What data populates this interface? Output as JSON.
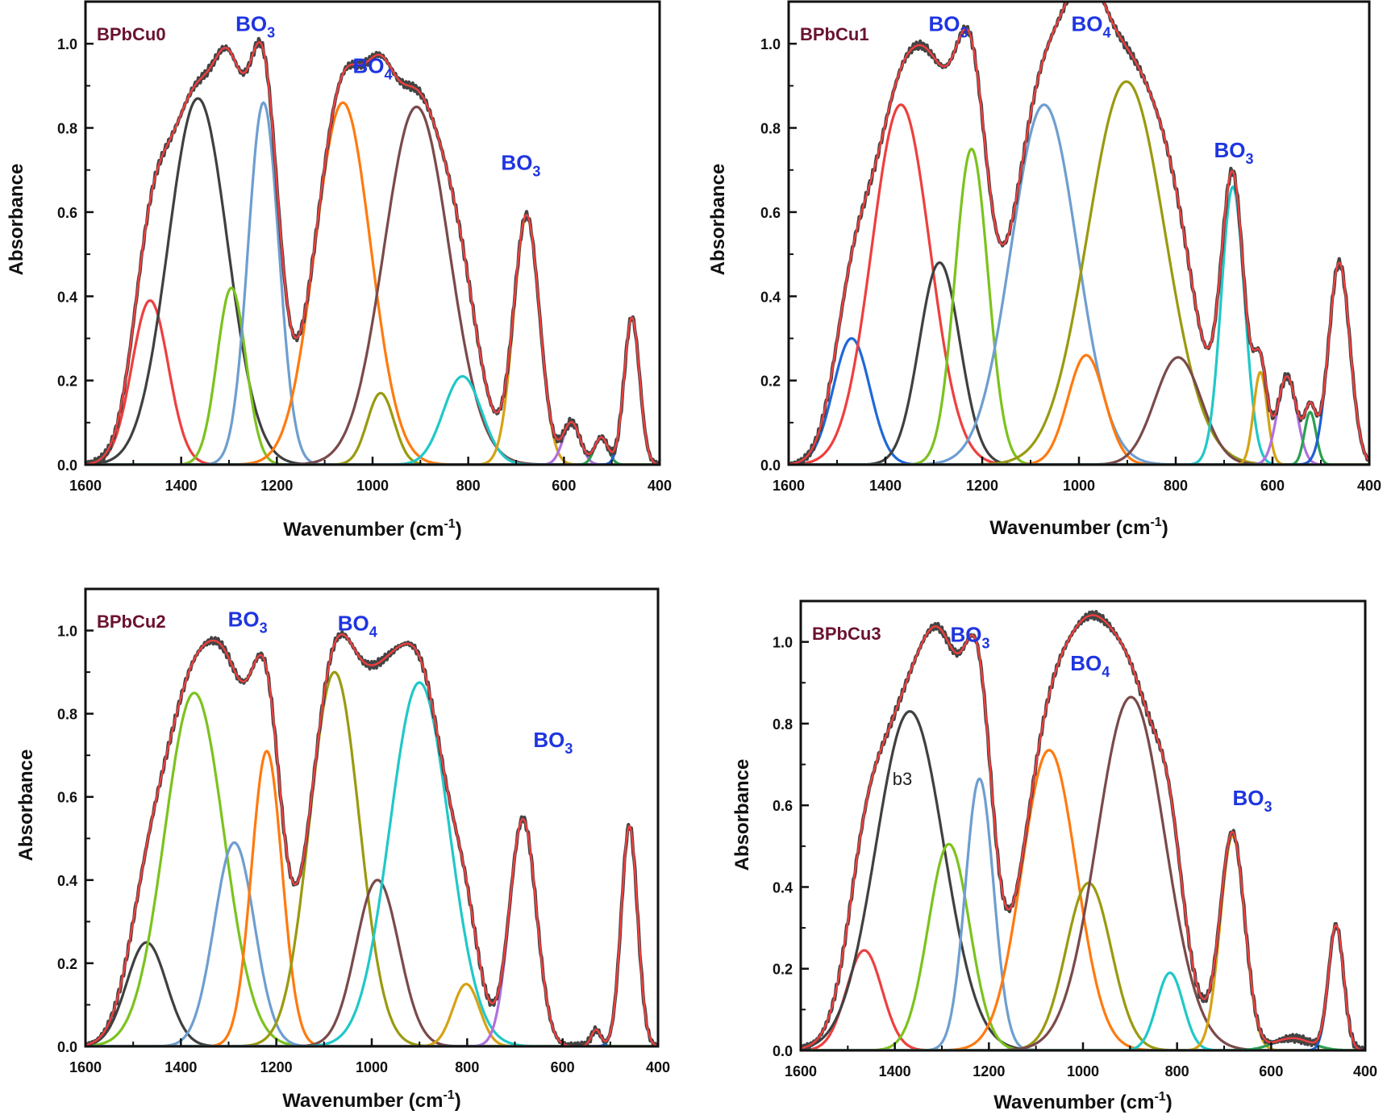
{
  "colors": {
    "sample_label": "#6b1230",
    "band_label": "#1f35e0",
    "experimental": "#444444",
    "fit": "#ee3f3f"
  },
  "axes": {
    "xlabel_prefix": "Wavenumber (cm",
    "xlabel_sup": "-1",
    "xlabel_suffix": ")",
    "ylabel": "Absorbance",
    "xlim": [
      1600,
      400
    ],
    "ylim": [
      0,
      1.1
    ],
    "xticks": [
      "1600",
      "1400",
      "1200",
      "1000",
      "800",
      "600",
      "400"
    ],
    "yticks": [
      "0.0",
      "0.2",
      "0.4",
      "0.6",
      "0.8",
      "1.0"
    ]
  },
  "chart_data": [
    {
      "type": "line",
      "sample": "BPbCu0",
      "band_labels": [
        {
          "main": "BO",
          "sub": "3",
          "x": 1245,
          "y": 1.03
        },
        {
          "main": "BO",
          "sub": "4",
          "x": 1000,
          "y": 0.93
        },
        {
          "main": "BO",
          "sub": "3",
          "x": 690,
          "y": 0.7
        }
      ],
      "notes": [],
      "components": [
        {
          "center": 1465,
          "amp": 0.39,
          "sigma": 38,
          "color": "#ee3f3f"
        },
        {
          "center": 1365,
          "amp": 0.87,
          "sigma": 62,
          "color": "#404040"
        },
        {
          "center": 1295,
          "amp": 0.42,
          "sigma": 30,
          "color": "#7cc21e"
        },
        {
          "center": 1228,
          "amp": 0.86,
          "sigma": 32,
          "color": "#6e9ed0"
        },
        {
          "center": 1062,
          "amp": 0.86,
          "sigma": 58,
          "color": "#ff7a0f"
        },
        {
          "center": 983,
          "amp": 0.17,
          "sigma": 28,
          "color": "#9a9a10"
        },
        {
          "center": 908,
          "amp": 0.85,
          "sigma": 68,
          "color": "#7a4a4a"
        },
        {
          "center": 812,
          "amp": 0.21,
          "sigma": 40,
          "color": "#20c8c8"
        },
        {
          "center": 678,
          "amp": 0.59,
          "sigma": 27,
          "color": "#d6a214"
        },
        {
          "center": 584,
          "amp": 0.1,
          "sigma": 18,
          "color": "#b070e0"
        },
        {
          "center": 522,
          "amp": 0.065,
          "sigma": 14,
          "color": "#2aa050"
        },
        {
          "center": 458,
          "amp": 0.35,
          "sigma": 16,
          "color": "#2060d0"
        }
      ]
    },
    {
      "type": "line",
      "sample": "BPbCu1",
      "band_labels": [
        {
          "main": "BO",
          "sub": "3",
          "x": 1270,
          "y": 1.03
        },
        {
          "main": "BO",
          "sub": "4",
          "x": 975,
          "y": 1.03
        },
        {
          "main": "BO",
          "sub": "3",
          "x": 680,
          "y": 0.73
        }
      ],
      "notes": [],
      "components": [
        {
          "center": 1470,
          "amp": 0.3,
          "sigma": 38,
          "color": "#2068d8"
        },
        {
          "center": 1368,
          "amp": 0.855,
          "sigma": 60,
          "color": "#ee3f3f"
        },
        {
          "center": 1288,
          "amp": 0.48,
          "sigma": 42,
          "color": "#404040"
        },
        {
          "center": 1222,
          "amp": 0.75,
          "sigma": 34,
          "color": "#7cc21e"
        },
        {
          "center": 1072,
          "amp": 0.855,
          "sigma": 68,
          "color": "#6e9ed0"
        },
        {
          "center": 985,
          "amp": 0.26,
          "sigma": 38,
          "color": "#ff7a0f"
        },
        {
          "center": 902,
          "amp": 0.91,
          "sigma": 80,
          "color": "#9a9a10"
        },
        {
          "center": 795,
          "amp": 0.255,
          "sigma": 48,
          "color": "#7a4a4a"
        },
        {
          "center": 682,
          "amp": 0.66,
          "sigma": 24,
          "color": "#20c8c8"
        },
        {
          "center": 625,
          "amp": 0.22,
          "sigma": 14,
          "color": "#d6a214"
        },
        {
          "center": 570,
          "amp": 0.21,
          "sigma": 20,
          "color": "#b070e0"
        },
        {
          "center": 522,
          "amp": 0.125,
          "sigma": 12,
          "color": "#2aa050"
        },
        {
          "center": 462,
          "amp": 0.48,
          "sigma": 22,
          "color": "#2060d0"
        }
      ]
    },
    {
      "type": "line",
      "sample": "BPbCu2",
      "band_labels": [
        {
          "main": "BO",
          "sub": "3",
          "x": 1260,
          "y": 1.01
        },
        {
          "main": "BO",
          "sub": "4",
          "x": 1030,
          "y": 1.0
        },
        {
          "main": "BO",
          "sub": "3",
          "x": 620,
          "y": 0.72
        }
      ],
      "notes": [],
      "components": [
        {
          "center": 1472,
          "amp": 0.25,
          "sigma": 42,
          "color": "#404040"
        },
        {
          "center": 1372,
          "amp": 0.85,
          "sigma": 62,
          "color": "#7cc21e"
        },
        {
          "center": 1288,
          "amp": 0.49,
          "sigma": 42,
          "color": "#6e9ed0"
        },
        {
          "center": 1220,
          "amp": 0.71,
          "sigma": 32,
          "color": "#ff7a0f"
        },
        {
          "center": 1078,
          "amp": 0.9,
          "sigma": 52,
          "color": "#9a9a10"
        },
        {
          "center": 988,
          "amp": 0.4,
          "sigma": 45,
          "color": "#7a4a4a"
        },
        {
          "center": 900,
          "amp": 0.875,
          "sigma": 62,
          "color": "#20c8c8"
        },
        {
          "center": 802,
          "amp": 0.15,
          "sigma": 28,
          "color": "#d6a214"
        },
        {
          "center": 683,
          "amp": 0.545,
          "sigma": 28,
          "color": "#b070e0"
        },
        {
          "center": 530,
          "amp": 0.04,
          "sigma": 10,
          "color": "#2aa050"
        },
        {
          "center": 460,
          "amp": 0.53,
          "sigma": 17,
          "color": "#2060d0"
        }
      ]
    },
    {
      "type": "line",
      "sample": "BPbCu3",
      "band_labels": [
        {
          "main": "BO",
          "sub": "3",
          "x": 1240,
          "y": 1.0
        },
        {
          "main": "BO",
          "sub": "4",
          "x": 985,
          "y": 0.93
        },
        {
          "main": "BO",
          "sub": "3",
          "x": 640,
          "y": 0.6
        }
      ],
      "notes": [
        {
          "text": "b3",
          "x": 1405,
          "y": 0.65
        }
      ],
      "components": [
        {
          "center": 1465,
          "amp": 0.245,
          "sigma": 38,
          "color": "#ee3f3f"
        },
        {
          "center": 1368,
          "amp": 0.83,
          "sigma": 72,
          "color": "#404040"
        },
        {
          "center": 1285,
          "amp": 0.505,
          "sigma": 44,
          "color": "#7cc21e"
        },
        {
          "center": 1220,
          "amp": 0.665,
          "sigma": 30,
          "color": "#6e9ed0"
        },
        {
          "center": 1072,
          "amp": 0.735,
          "sigma": 58,
          "color": "#ff7a0f"
        },
        {
          "center": 988,
          "amp": 0.41,
          "sigma": 48,
          "color": "#9a9a10"
        },
        {
          "center": 898,
          "amp": 0.865,
          "sigma": 72,
          "color": "#7a4a4a"
        },
        {
          "center": 815,
          "amp": 0.19,
          "sigma": 28,
          "color": "#20c8c8"
        },
        {
          "center": 682,
          "amp": 0.525,
          "sigma": 26,
          "color": "#d6a214"
        },
        {
          "center": 555,
          "amp": 0.03,
          "sigma": 40,
          "color": "#2aa050"
        },
        {
          "center": 462,
          "amp": 0.305,
          "sigma": 16,
          "color": "#2060d0"
        }
      ]
    }
  ]
}
